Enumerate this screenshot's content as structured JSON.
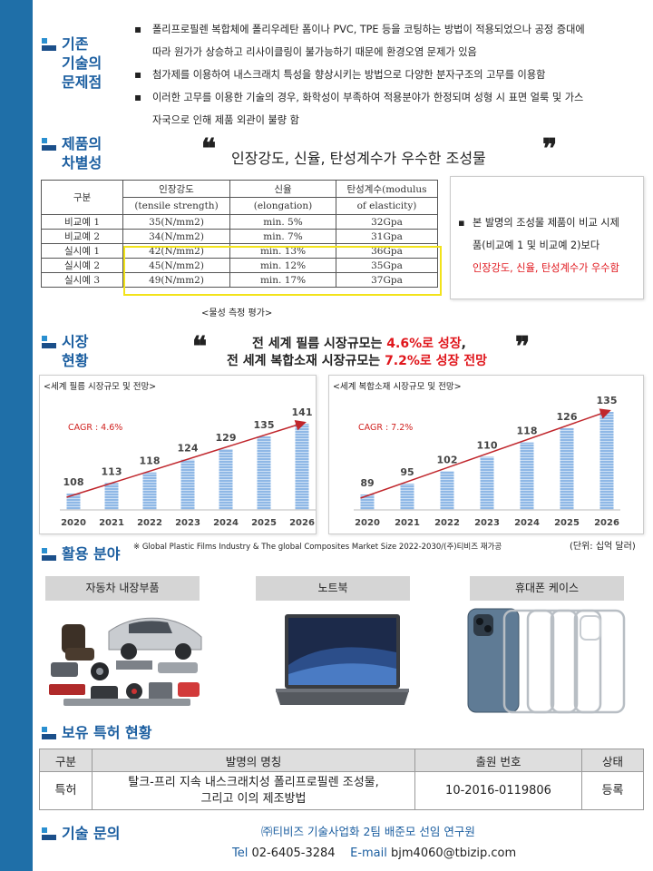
{
  "sections": {
    "prior_art": [
      "기존",
      "기술의",
      "문제점"
    ],
    "differentiation": [
      "제품의",
      "차별성"
    ],
    "market": [
      "시장",
      "현황"
    ],
    "applications": "활용 분야",
    "patents": "보유 특허 현황",
    "inquiry": "기술 문의"
  },
  "prior_art_bullets": [
    "폴리프로필렌 복합체에 폴리우레탄 폼이나 PVC, TPE 등을 코팅하는 방법이 적용되었으나 공정 증대에",
    "따라 원가가 상승하고 리사이클링이 불가능하기 때문에 환경오염 문제가 있음",
    "첨가제를 이용하여 내스크래치 특성을 향상시키는 방법으로 다양한 분자구조의 고무를 이용함",
    "이러한 고무를 이용한 기술의 경우, 화학성이 부족하여 적용분야가 한정되며 성형 시 표면 얼룩 및 가스",
    "자국으로 인해 제품 외관이 불량 함"
  ],
  "quotes": {
    "open": "❝",
    "close": "❞"
  },
  "diff_headline": "인장강도, 신율, 탄성계수가 우수한 조성물",
  "spec_table": {
    "headers": [
      [
        "구분",
        ""
      ],
      [
        "인장강도",
        "(tensile strength)"
      ],
      [
        "신율",
        "(elongation)"
      ],
      [
        "탄성계수(modulus",
        "of elasticity)"
      ]
    ],
    "rows": [
      [
        "비교예 1",
        "35(N/mm2)",
        "min. 5%",
        "32Gpa"
      ],
      [
        "비교예 2",
        "34(N/mm2)",
        "min. 7%",
        "31Gpa"
      ],
      [
        "실시예 1",
        "42(N/mm2)",
        "min. 13%",
        "36Gpa"
      ],
      [
        "실시예 2",
        "45(N/mm2)",
        "min. 12%",
        "35Gpa"
      ],
      [
        "실시예 3",
        "49(N/mm2)",
        "min. 17%",
        "37Gpa"
      ]
    ],
    "caption": "<물성 측정 평가>"
  },
  "diff_box": {
    "bullet": "▪",
    "line1": "본 발명의 조성물 제품이 비교 시제",
    "line2": "품(비교예 1 및 비교예 2)보다",
    "highlight": "인장강도, 신율, 탄성계수가 우수함"
  },
  "market_headline": {
    "line1_pre": "전 세계 필름 시장규모는 ",
    "line1_red": "4.6%로 성장",
    "line1_post": ",",
    "line2_pre": "전 세계 복합소재 시장규모는 ",
    "line2_red": "7.2%로 성장 전망"
  },
  "chart_data": [
    {
      "type": "bar",
      "title": "<세계 필름 시장규모 및 전망>",
      "annotation": "CAGR : 4.6%",
      "categories": [
        "2020",
        "2021",
        "2022",
        "2023",
        "2024",
        "2025",
        "2026"
      ],
      "values": [
        108,
        113,
        118,
        124,
        129,
        135,
        141
      ],
      "trend_arrow": true,
      "bar_color": "#8fb8e6",
      "arrow_color": "#c0262c"
    },
    {
      "type": "bar",
      "title": "<세계 복합소재 시장규모 및 전망>",
      "annotation": "CAGR : 7.2%",
      "categories": [
        "2020",
        "2021",
        "2022",
        "2023",
        "2024",
        "2025",
        "2026"
      ],
      "values": [
        89,
        95,
        102,
        110,
        118,
        126,
        135
      ],
      "trend_arrow": true,
      "bar_color": "#8fb8e6",
      "arrow_color": "#c0262c"
    }
  ],
  "source_note": "※  Global Plastic Films Industry & The global Composites Market Size 2022-2030/(주)티비즈 재가공",
  "unit_note": "(단위: 십억 달러)",
  "applications": [
    "자동차 내장부품",
    "노트북",
    "휴대폰 케이스"
  ],
  "patent_table": {
    "headers": [
      "구분",
      "발명의 명칭",
      "출원 번호",
      "상태"
    ],
    "row": {
      "type": "특허",
      "title_line1": "탈크-프리 지속 내스크래치성 폴리프로필렌 조성물,",
      "title_line2": "그리고 이의 제조방법",
      "number": "10-2016-0119806",
      "status": "등록"
    }
  },
  "contact": {
    "org": "㈜티비즈 기술사업화 2팀 배준모 선임 연구원",
    "tel_label": "Tel",
    "tel": "02-6405-3284",
    "email_label": "E-mail",
    "email": "bjm4060@tbizip.com"
  }
}
